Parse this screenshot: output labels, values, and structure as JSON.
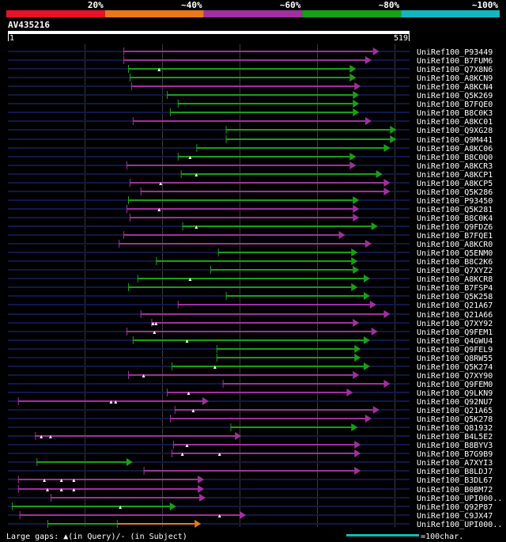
{
  "query": {
    "name": "AV435216",
    "start": "1",
    "end": "519",
    "length": 519
  },
  "legend": {
    "segments": [
      {
        "label": "20%",
        "color": "#e8102a"
      },
      {
        "label": "~40%",
        "color": "#e87818"
      },
      {
        "label": "~60%",
        "color": "#a030a0"
      },
      {
        "label": "~80%",
        "color": "#18a018"
      },
      {
        "label": "~100%",
        "color": "#10b8c0"
      }
    ]
  },
  "colors": {
    "bg": "#000000",
    "track": "#101848",
    "grid": "#3a3a3a",
    "text": "#ffffff",
    "scale": "#10b8c0"
  },
  "footer": {
    "gaps_text": "Large gaps: ▲(in Query)/- (in Subject)",
    "scale_text": "=100char.",
    "scale_chars": 100
  },
  "hits": [
    {
      "name": "UniRef100_P93449",
      "start": 150,
      "end": 480,
      "color": "#a030a0",
      "gaps": []
    },
    {
      "name": "UniRef100_B7FUM6",
      "start": 150,
      "end": 470,
      "color": "#a030a0",
      "gaps": []
    },
    {
      "name": "UniRef100_Q7X8N6",
      "start": 156,
      "end": 450,
      "color": "#18a018",
      "gaps": [
        196
      ]
    },
    {
      "name": "UniRef100_A8KCN9",
      "start": 158,
      "end": 450,
      "color": "#18a018",
      "gaps": []
    },
    {
      "name": "UniRef100_A8KCN4",
      "start": 160,
      "end": 456,
      "color": "#a030a0",
      "gaps": []
    },
    {
      "name": "UniRef100_Q5K269",
      "start": 206,
      "end": 454,
      "color": "#18a018",
      "gaps": []
    },
    {
      "name": "UniRef100_B7FQE0",
      "start": 220,
      "end": 454,
      "color": "#18a018",
      "gaps": []
    },
    {
      "name": "UniRef100_B8C0K3",
      "start": 210,
      "end": 454,
      "color": "#18a018",
      "gaps": []
    },
    {
      "name": "UniRef100_A8KC01",
      "start": 162,
      "end": 470,
      "color": "#a030a0",
      "gaps": []
    },
    {
      "name": "UniRef100_Q9XG28",
      "start": 282,
      "end": 502,
      "color": "#18a018",
      "gaps": []
    },
    {
      "name": "UniRef100_Q9M441",
      "start": 282,
      "end": 502,
      "color": "#18a018",
      "gaps": []
    },
    {
      "name": "UniRef100_A8KC06",
      "start": 244,
      "end": 494,
      "color": "#18a018",
      "gaps": []
    },
    {
      "name": "UniRef100_B8C0Q0",
      "start": 220,
      "end": 450,
      "color": "#18a018",
      "gaps": [
        236
      ]
    },
    {
      "name": "UniRef100_A8KCR3",
      "start": 154,
      "end": 450,
      "color": "#a030a0",
      "gaps": []
    },
    {
      "name": "UniRef100_A8KCP1",
      "start": 224,
      "end": 484,
      "color": "#18a018",
      "gaps": [
        244
      ]
    },
    {
      "name": "UniRef100_A8KCP5",
      "start": 158,
      "end": 494,
      "color": "#a030a0",
      "gaps": [
        198
      ]
    },
    {
      "name": "UniRef100_Q5K286",
      "start": 172,
      "end": 494,
      "color": "#a030a0",
      "gaps": []
    },
    {
      "name": "UniRef100_P93450",
      "start": 156,
      "end": 454,
      "color": "#18a018",
      "gaps": []
    },
    {
      "name": "UniRef100_Q5K281",
      "start": 154,
      "end": 454,
      "color": "#a030a0",
      "gaps": [
        196
      ]
    },
    {
      "name": "UniRef100_B8C0K4",
      "start": 158,
      "end": 454,
      "color": "#a030a0",
      "gaps": []
    },
    {
      "name": "UniRef100_Q9FDZ6",
      "start": 226,
      "end": 478,
      "color": "#18a018",
      "gaps": [
        244
      ]
    },
    {
      "name": "UniRef100_B7FQE1",
      "start": 150,
      "end": 436,
      "color": "#a030a0",
      "gaps": []
    },
    {
      "name": "UniRef100_A8KCR0",
      "start": 144,
      "end": 470,
      "color": "#a030a0",
      "gaps": []
    },
    {
      "name": "UniRef100_Q5ENM0",
      "start": 272,
      "end": 452,
      "color": "#18a018",
      "gaps": []
    },
    {
      "name": "UniRef100_B8C2K6",
      "start": 192,
      "end": 452,
      "color": "#18a018",
      "gaps": []
    },
    {
      "name": "UniRef100_Q7XYZ2",
      "start": 262,
      "end": 454,
      "color": "#18a018",
      "gaps": []
    },
    {
      "name": "UniRef100_A8KCR8",
      "start": 168,
      "end": 468,
      "color": "#18a018",
      "gaps": [
        236
      ]
    },
    {
      "name": "UniRef100_B7FSP4",
      "start": 156,
      "end": 452,
      "color": "#18a018",
      "gaps": []
    },
    {
      "name": "UniRef100_Q5K258",
      "start": 282,
      "end": 468,
      "color": "#18a018",
      "gaps": []
    },
    {
      "name": "UniRef100_Q21A67",
      "start": 220,
      "end": 476,
      "color": "#a030a0",
      "gaps": []
    },
    {
      "name": "UniRef100_Q21A66",
      "start": 172,
      "end": 494,
      "color": "#a030a0",
      "gaps": []
    },
    {
      "name": "UniRef100_Q7XY92",
      "start": 186,
      "end": 454,
      "color": "#a030a0",
      "gaps": [
        188,
        192
      ]
    },
    {
      "name": "UniRef100_Q9FEM1",
      "start": 154,
      "end": 478,
      "color": "#a030a0",
      "gaps": [
        190
      ]
    },
    {
      "name": "UniRef100_Q4GWU4",
      "start": 162,
      "end": 468,
      "color": "#18a018",
      "gaps": [
        232
      ]
    },
    {
      "name": "UniRef100_Q9FEL9",
      "start": 270,
      "end": 456,
      "color": "#18a018",
      "gaps": []
    },
    {
      "name": "UniRef100_Q8RW55",
      "start": 270,
      "end": 456,
      "color": "#18a018",
      "gaps": []
    },
    {
      "name": "UniRef100_Q5K274",
      "start": 212,
      "end": 468,
      "color": "#18a018",
      "gaps": [
        268
      ]
    },
    {
      "name": "UniRef100_Q7XY90",
      "start": 156,
      "end": 454,
      "color": "#a030a0",
      "gaps": [
        176
      ]
    },
    {
      "name": "UniRef100_Q9FEM0",
      "start": 278,
      "end": 494,
      "color": "#a030a0",
      "gaps": []
    },
    {
      "name": "UniRef100_Q9LKN9",
      "start": 206,
      "end": 446,
      "color": "#a030a0",
      "gaps": [
        234
      ]
    },
    {
      "name": "UniRef100_Q92NU7",
      "start": 14,
      "end": 260,
      "color": "#a030a0",
      "gaps": [
        134,
        140
      ]
    },
    {
      "name": "UniRef100_Q21A65",
      "start": 216,
      "end": 480,
      "color": "#a030a0",
      "gaps": [
        240
      ]
    },
    {
      "name": "UniRef100_Q5K278",
      "start": 210,
      "end": 470,
      "color": "#a030a0",
      "gaps": []
    },
    {
      "name": "UniRef100_Q81932",
      "start": 288,
      "end": 452,
      "color": "#18a018",
      "gaps": []
    },
    {
      "name": "UniRef100_B4L5E2",
      "start": 36,
      "end": 302,
      "color": "#a030a0",
      "gaps": [
        44,
        56
      ]
    },
    {
      "name": "UniRef100_B8BYV3",
      "start": 214,
      "end": 456,
      "color": "#a030a0",
      "gaps": [
        232
      ]
    },
    {
      "name": "UniRef100_B7G9B9",
      "start": 212,
      "end": 456,
      "color": "#a030a0",
      "gaps": [
        226,
        274
      ]
    },
    {
      "name": "UniRef100_A7XYI3",
      "start": 38,
      "end": 162,
      "color": "#18a018",
      "gaps": []
    },
    {
      "name": "UniRef100_B8LDJ7",
      "start": 176,
      "end": 456,
      "color": "#a030a0",
      "gaps": []
    },
    {
      "name": "UniRef100_B3DL67",
      "start": 14,
      "end": 254,
      "color": "#a030a0",
      "gaps": [
        48,
        70,
        86
      ]
    },
    {
      "name": "UniRef100_B0BM72",
      "start": 14,
      "end": 254,
      "color": "#a030a0",
      "gaps": [
        52,
        70,
        86
      ]
    },
    {
      "name": "UniRef100_UPI000..",
      "start": 56,
      "end": 256,
      "color": "#a030a0",
      "gaps": []
    },
    {
      "name": "UniRef100_Q92P87",
      "start": 6,
      "end": 218,
      "color": "#18a018",
      "gaps": [
        146
      ]
    },
    {
      "name": "UniRef100_C9JX47",
      "start": 16,
      "end": 308,
      "color": "#a030a0",
      "gaps": [
        274
      ]
    },
    {
      "name": "UniRef100_UPI000..",
      "start": 52,
      "end": 250,
      "color": "#18a018",
      "color2": "#e87818",
      "split": 142,
      "gaps": []
    }
  ]
}
